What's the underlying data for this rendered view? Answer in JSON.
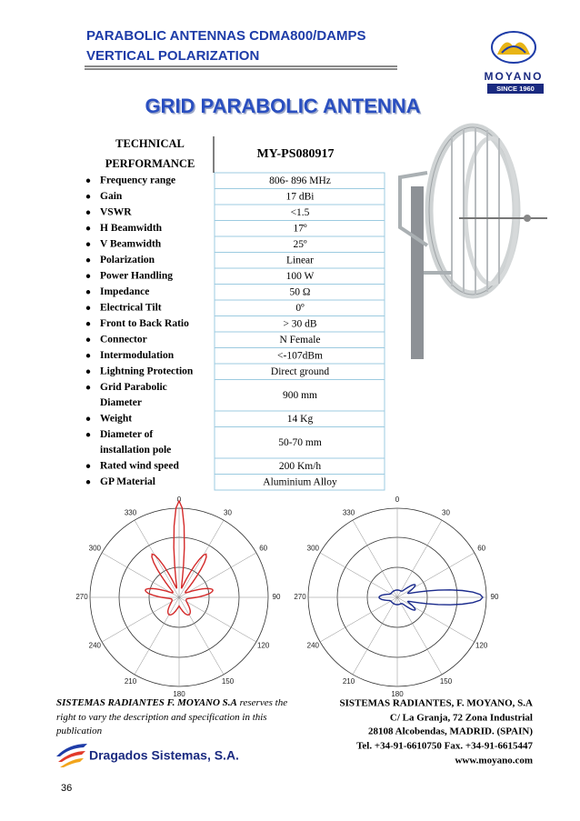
{
  "header": {
    "title": [
      "PARABOLIC ANTENNAS CDMA800/DAMPS",
      "VERTICAL POLARIZATION"
    ],
    "logo": {
      "name": "MOYANO",
      "since": "SINCE 1960"
    }
  },
  "main_title": "GRID PARABOLIC ANTENNA",
  "table": {
    "header": [
      [
        "TECHNICAL",
        "PERFORMANCE"
      ],
      "MY-PS080917"
    ],
    "rows": [
      [
        [
          "Frequency range"
        ],
        "806- 896 MHz"
      ],
      [
        [
          "Gain"
        ],
        "17 dBi"
      ],
      [
        [
          "VSWR"
        ],
        "<1.5"
      ],
      [
        [
          "H Beamwidth"
        ],
        "17º"
      ],
      [
        [
          "V Beamwidth"
        ],
        "25º"
      ],
      [
        [
          "Polarization"
        ],
        "Linear"
      ],
      [
        [
          "Power Handling"
        ],
        "100 W"
      ],
      [
        [
          "Impedance"
        ],
        "50 Ω"
      ],
      [
        [
          "Electrical Tilt"
        ],
        "0º"
      ],
      [
        [
          "Front to Back Ratio"
        ],
        "> 30 dB"
      ],
      [
        [
          "Connector"
        ],
        "N Female"
      ],
      [
        [
          "Intermodulation"
        ],
        "<-107dBm"
      ],
      [
        [
          "Lightning Protection"
        ],
        "Direct ground"
      ],
      [
        [
          "Grid Parabolic",
          "Diameter"
        ],
        "900 mm"
      ],
      [
        [
          "Weight"
        ],
        "14 Kg"
      ],
      [
        [
          "Diameter of",
          "installation pole"
        ],
        "50-70 mm"
      ],
      [
        [
          "Rated wind speed"
        ],
        "200 Km/h"
      ],
      [
        [
          "GP Material"
        ],
        "Aluminium Alloy"
      ]
    ]
  },
  "polar_charts": [
    {
      "angle_labels": [
        "0",
        "30",
        "60",
        "90",
        "120",
        "150",
        "180",
        "210",
        "240",
        "270",
        "300",
        "330"
      ]
    },
    {
      "angle_labels": [
        "0",
        "30",
        "60",
        "90",
        "120",
        "150",
        "180",
        "210",
        "240",
        "270",
        "300",
        "330"
      ]
    }
  ],
  "footer": {
    "left": {
      "company": "SISTEMAS RADIANTES F. MOYANO S.A",
      "text": "reserves the right to vary the description and specification in this publication"
    },
    "right": [
      "SISTEMAS RADIANTES, F. MOYANO, S.A",
      "C/ La Granja, 72 Zona Industrial",
      "28108 Alcobendas, MADRID. (SPAIN)",
      "Tel. +34-91-6610750 Fax. +34-91-6615447",
      "www.moyano.com"
    ],
    "partner": "Dragados Sistemas, S.A."
  },
  "page_number": "36"
}
